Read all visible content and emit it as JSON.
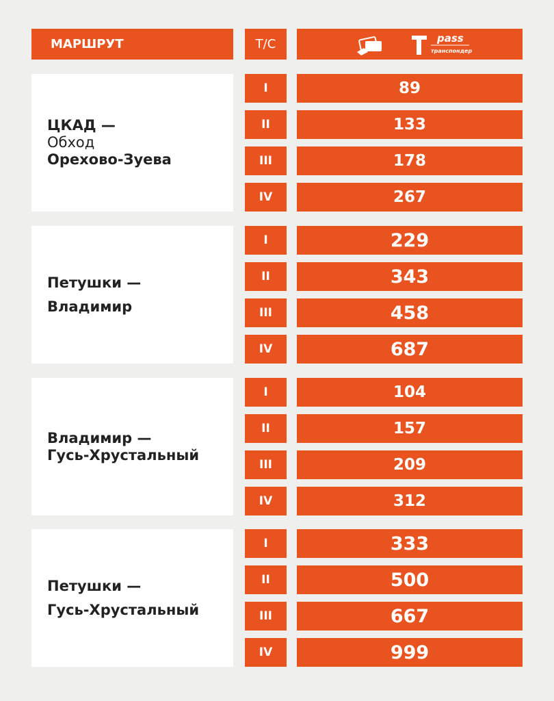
{
  "header": {
    "route": "МАРШРУТ",
    "vehicle": "Т/С",
    "brand": "pass",
    "brand_caption": "транспондер"
  },
  "routes": [
    {
      "name": [
        "ЦКАД —",
        "Обход",
        "Орехово-Зуева"
      ],
      "rows": [
        {
          "class": "I",
          "price": 89
        },
        {
          "class": "II",
          "price": 133
        },
        {
          "class": "III",
          "price": 178
        },
        {
          "class": "IV",
          "price": 267
        }
      ]
    },
    {
      "name": [
        "Петушки —",
        "Владимир"
      ],
      "rows": [
        {
          "class": "I",
          "price": 229
        },
        {
          "class": "II",
          "price": 343
        },
        {
          "class": "III",
          "price": 458
        },
        {
          "class": "IV",
          "price": 687
        }
      ]
    },
    {
      "name": [
        "Владимир —",
        "Гусь-Хрустальный"
      ],
      "rows": [
        {
          "class": "I",
          "price": 104
        },
        {
          "class": "II",
          "price": 157
        },
        {
          "class": "III",
          "price": 209
        },
        {
          "class": "IV",
          "price": 312
        }
      ]
    },
    {
      "name": [
        "Петушки —",
        "Гусь-Хрустальный"
      ],
      "rows": [
        {
          "class": "I",
          "price": 333
        },
        {
          "class": "II",
          "price": 500
        },
        {
          "class": "III",
          "price": 667
        },
        {
          "class": "IV",
          "price": 999
        }
      ]
    }
  ]
}
